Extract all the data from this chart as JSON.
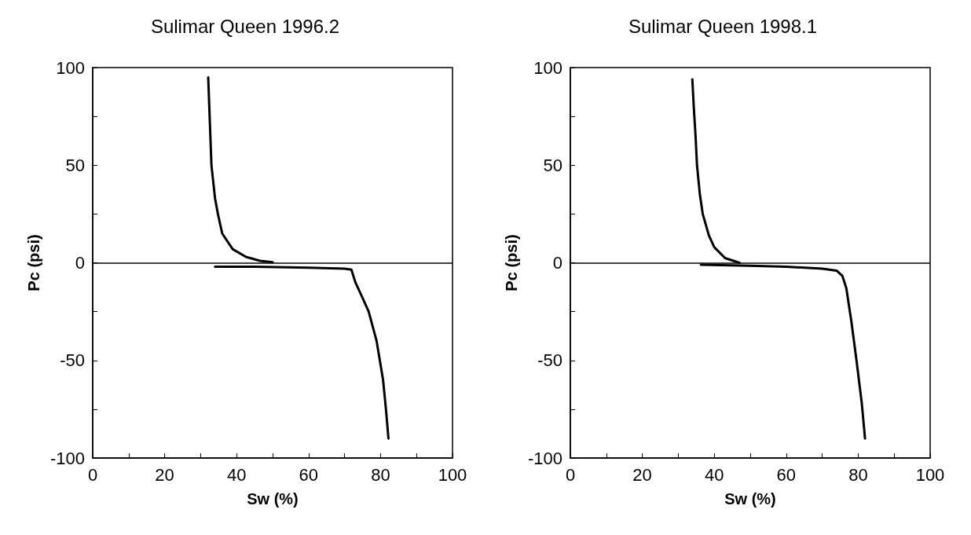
{
  "chart_data": [
    {
      "type": "line",
      "title": "Sulimar Queen 1996.2",
      "xlabel": "Sw (%)",
      "ylabel": "Pc (psi)",
      "xlim": [
        0,
        100
      ],
      "ylim": [
        -100,
        100
      ],
      "xticks": [
        0,
        {
          "value": 10,
          "label": null
        },
        20,
        {
          "value": 30,
          "label": null
        },
        40,
        {
          "value": 50,
          "label": null
        },
        60,
        {
          "value": 70,
          "label": null
        },
        80,
        {
          "value": 90,
          "label": null
        },
        100
      ],
      "yticks": [
        -100,
        {
          "value": -75,
          "label": null
        },
        -50,
        {
          "value": -25,
          "label": null
        },
        0,
        {
          "value": 25,
          "label": null
        },
        50,
        {
          "value": 75,
          "label": null
        },
        100
      ],
      "grid": false,
      "marker": "none",
      "line_style": "solid",
      "ref_lines": [
        {
          "axis": "y",
          "value": 0,
          "color": "#000000"
        }
      ],
      "series": [
        {
          "color": "#000000",
          "x": [
            32.1,
            32.5,
            33,
            34,
            34.8,
            36,
            38.9,
            42.6,
            46.5,
            50
          ],
          "values": [
            95,
            75,
            50,
            33,
            25,
            15,
            7,
            3,
            1,
            0.3
          ]
        },
        {
          "color": "#000000",
          "x": [
            34,
            45,
            60,
            70,
            71.9,
            73,
            75,
            76.7,
            78.9,
            80.7,
            81.5,
            82.2
          ],
          "values": [
            -2,
            -2,
            -2.5,
            -3,
            -3.5,
            -10,
            -18,
            -25,
            -40,
            -60,
            -75,
            -90
          ]
        }
      ]
    },
    {
      "type": "line",
      "title": "Sulimar Queen 1998.1",
      "xlabel": "Sw (%)",
      "ylabel": "Pc (psi)",
      "xlim": [
        0,
        100
      ],
      "ylim": [
        -100,
        100
      ],
      "xticks": [
        0,
        {
          "value": 10,
          "label": null
        },
        20,
        {
          "value": 30,
          "label": null
        },
        40,
        {
          "value": 50,
          "label": null
        },
        60,
        {
          "value": 70,
          "label": null
        },
        80,
        {
          "value": 90,
          "label": null
        },
        100
      ],
      "yticks": [
        -100,
        {
          "value": -75,
          "label": null
        },
        -50,
        {
          "value": -25,
          "label": null
        },
        0,
        {
          "value": 25,
          "label": null
        },
        50,
        {
          "value": 75,
          "label": null
        },
        100
      ],
      "grid": false,
      "marker": "none",
      "line_style": "solid",
      "ref_lines": [
        {
          "axis": "y",
          "value": 0,
          "color": "#000000"
        }
      ],
      "series": [
        {
          "color": "#000000",
          "x": [
            33.9,
            34.3,
            34.8,
            35.2,
            36,
            36.8,
            38.5,
            40,
            43,
            47
          ],
          "values": [
            94,
            80,
            65,
            50,
            35,
            25,
            14,
            8,
            2.4,
            0
          ]
        },
        {
          "color": "#000000",
          "x": [
            36.3,
            50,
            60,
            70,
            74,
            75.6,
            76.7,
            78.1,
            79.6,
            81,
            81.9
          ],
          "values": [
            -1,
            -1.5,
            -2,
            -3,
            -4,
            -6.7,
            -13,
            -30,
            -51,
            -72,
            -90
          ]
        }
      ]
    }
  ]
}
